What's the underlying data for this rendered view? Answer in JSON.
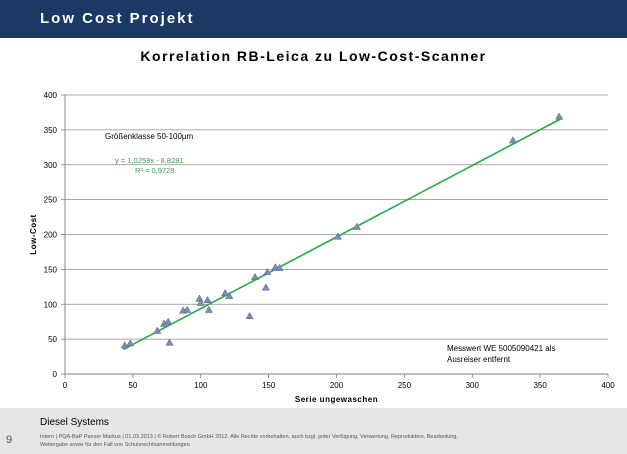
{
  "header": {
    "title": "Low Cost Projekt"
  },
  "footer": {
    "title": "Diesel Systems",
    "page_number": "9",
    "legal": "Intern | PQA-BaP Panzer Markus | 01.03.2013 | © Robert Bosch GmbH 2012. Alle Rechte vorbehalten, auch bzgl. jeder Verfügung, Verwertung, Reproduktion, Bearbeitung, Weitergabe sowie für den Fall von Schutzrechtsanmeldungen."
  },
  "colors": {
    "header_bg": "#1b3a63",
    "trendline": "#22aa44",
    "marker": "#7b8db4",
    "marker_edge": "#4f6288"
  },
  "chart_data": {
    "type": "scatter",
    "title": "Korrelation RB-Leica zu Low-Cost-Scanner",
    "xlabel": "Serie ungewaschen",
    "ylabel": "Low-Cost",
    "xlim": [
      0,
      400
    ],
    "ylim": [
      0,
      400
    ],
    "xticks": [
      0,
      50,
      100,
      150,
      200,
      250,
      300,
      350,
      400
    ],
    "yticks": [
      0,
      50,
      100,
      150,
      200,
      250,
      300,
      350,
      400
    ],
    "grid": "horizontal",
    "marker": "triangle",
    "points": [
      {
        "x": 44,
        "y": 41
      },
      {
        "x": 48,
        "y": 44
      },
      {
        "x": 68,
        "y": 62
      },
      {
        "x": 73,
        "y": 72
      },
      {
        "x": 76,
        "y": 75
      },
      {
        "x": 77,
        "y": 45
      },
      {
        "x": 87,
        "y": 91
      },
      {
        "x": 90,
        "y": 92
      },
      {
        "x": 99,
        "y": 108
      },
      {
        "x": 100,
        "y": 102
      },
      {
        "x": 105,
        "y": 106
      },
      {
        "x": 106,
        "y": 92
      },
      {
        "x": 118,
        "y": 116
      },
      {
        "x": 121,
        "y": 112
      },
      {
        "x": 136,
        "y": 83
      },
      {
        "x": 140,
        "y": 139
      },
      {
        "x": 148,
        "y": 124
      },
      {
        "x": 149,
        "y": 146
      },
      {
        "x": 155,
        "y": 153
      },
      {
        "x": 158,
        "y": 152
      },
      {
        "x": 201,
        "y": 197
      },
      {
        "x": 215,
        "y": 211
      },
      {
        "x": 330,
        "y": 335
      },
      {
        "x": 364,
        "y": 369
      }
    ],
    "trendline": {
      "slope": 1.0258,
      "intercept": -8.8281,
      "x_range": [
        43,
        365
      ],
      "equation": "y = 1,0258x - 8,8281",
      "r2": "R² = 0,9728"
    },
    "annotations": {
      "size_class": "Größenklasse 50-100µm",
      "note_line1": "Messwert WE 5005090421 als",
      "note_line2": "Ausreiser entfernt"
    }
  }
}
